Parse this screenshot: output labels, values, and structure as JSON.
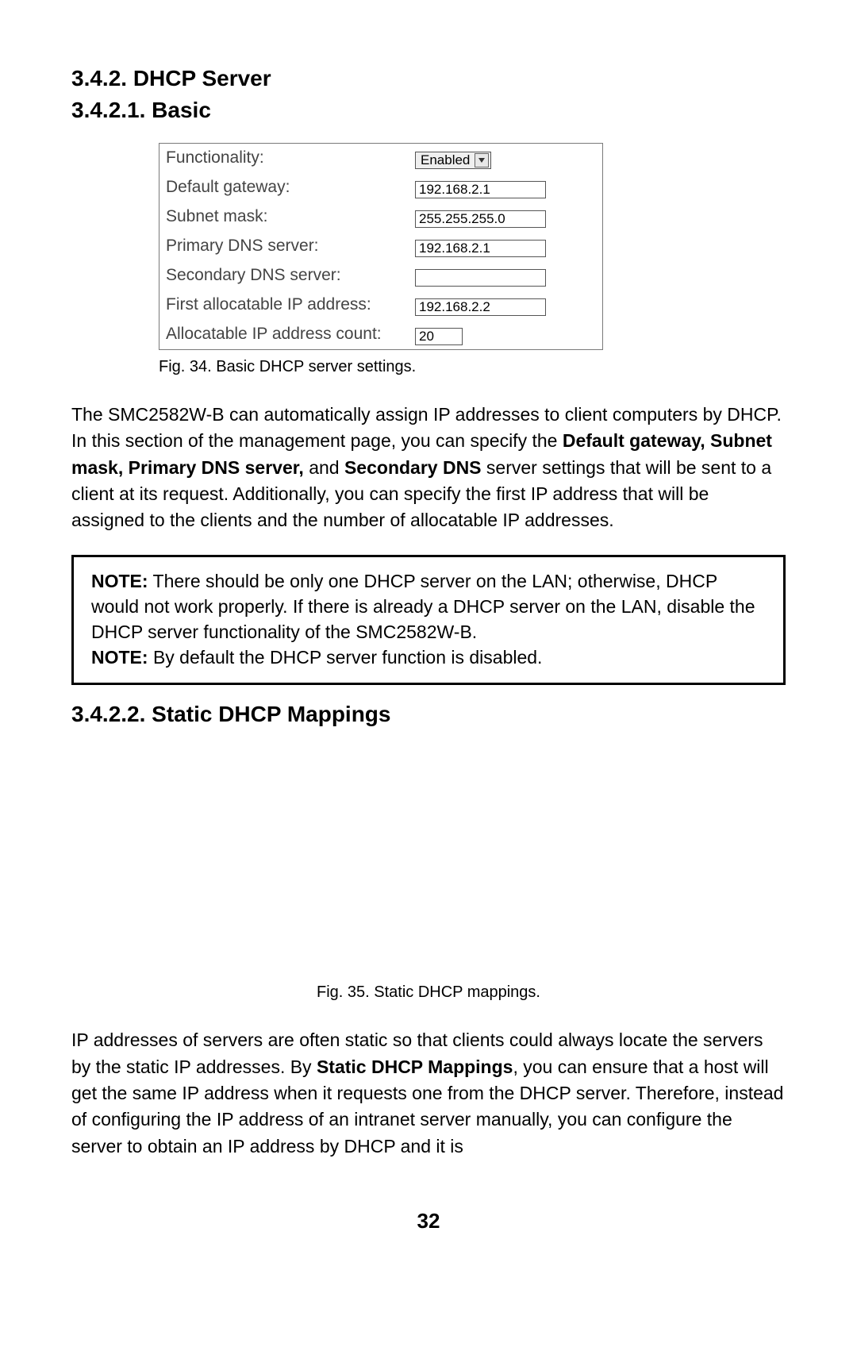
{
  "headings": {
    "h1": "3.4.2. DHCP Server",
    "h2": "3.4.2.1. Basic",
    "h3": "3.4.2.2. Static DHCP Mappings"
  },
  "form": {
    "rows": [
      {
        "label": "Functionality:",
        "type": "select",
        "value": "Enabled"
      },
      {
        "label": "Default gateway:",
        "type": "text",
        "value": "192.168.2.1"
      },
      {
        "label": "Subnet mask:",
        "type": "text",
        "value": "255.255.255.0"
      },
      {
        "label": "Primary DNS server:",
        "type": "text",
        "value": "192.168.2.1"
      },
      {
        "label": "Secondary DNS server:",
        "type": "text",
        "value": ""
      },
      {
        "label": "First allocatable IP address:",
        "type": "text",
        "value": "192.168.2.2"
      },
      {
        "label": "Allocatable IP address count:",
        "type": "text",
        "value": "20",
        "narrow": true,
        "wrap": true
      }
    ]
  },
  "captions": {
    "fig34": "Fig. 34. Basic DHCP server settings.",
    "fig35": "Fig. 35. Static DHCP mappings."
  },
  "para1": {
    "t1": "The SMC2582W-B can automatically assign IP addresses to client computers by DHCP. In this section of the management page, you can specify the ",
    "b1": "Default gateway, Subnet mask, Primary DNS server,",
    "t2": " and ",
    "b2": "Secondary DNS",
    "t3": " server settings that will be sent to a client at its request. Additionally, you can specify the first IP address that will be assigned to the clients and the number of allocatable IP addresses."
  },
  "notes": {
    "label": "NOTE:",
    "n1": " There should be only one DHCP server on the LAN; otherwise, DHCP would not work properly. If there is already a DHCP server on the LAN, disable the DHCP server functionality of the SMC2582W-B.",
    "n2": " By default the DHCP server function is disabled."
  },
  "para2": {
    "t1": "IP addresses of servers are often static so that clients could always locate the servers by the static IP addresses. By ",
    "b1": "Static DHCP Mappings",
    "t2": ", you can ensure that a host will get the same IP address when it requests one from the DHCP server. Therefore, instead of configuring the IP address of an intranet server manually, you can configure the server to obtain an IP address by DHCP and it is"
  },
  "page_number": "32"
}
